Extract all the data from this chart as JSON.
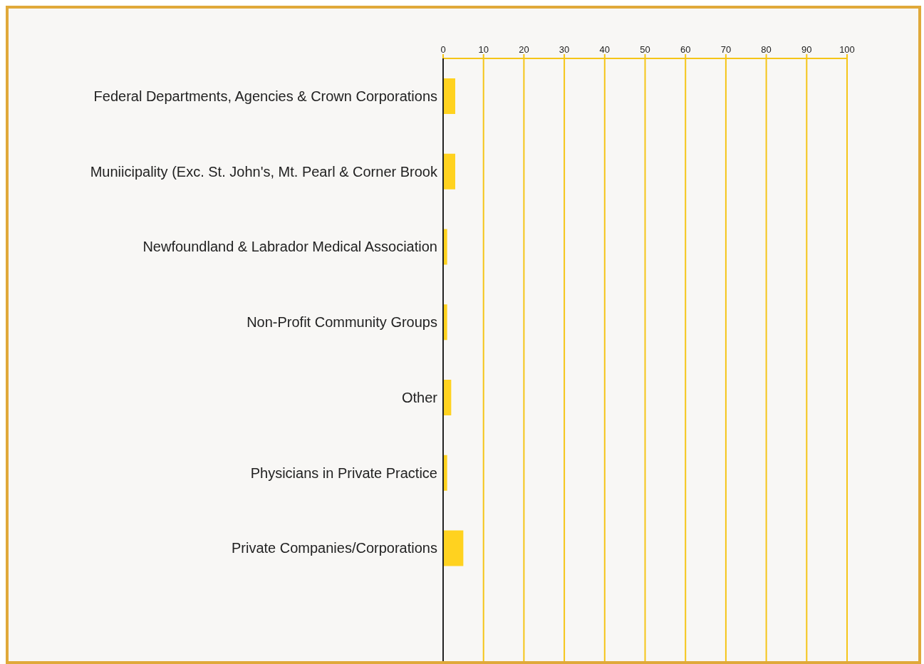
{
  "chart_data": {
    "type": "bar",
    "orientation": "horizontal",
    "categories": [
      "Federal Departments, Agencies & Crown Corporations",
      "Muniicipality (Exc. St. John's, Mt. Pearl & Corner Brook",
      "Newfoundland & Labrador  Medical Association",
      "Non-Profit Community Groups",
      "Other",
      "Physicians in Private Practice",
      "Private Companies/Corporations",
      null
    ],
    "values": [
      3,
      3,
      1,
      1,
      2,
      1,
      5,
      null
    ],
    "color": "#ffd21f",
    "xlim": [
      0,
      100
    ],
    "xticks": [
      0,
      10,
      20,
      30,
      40,
      50,
      60,
      70,
      80,
      90,
      100
    ],
    "grid": "x"
  }
}
